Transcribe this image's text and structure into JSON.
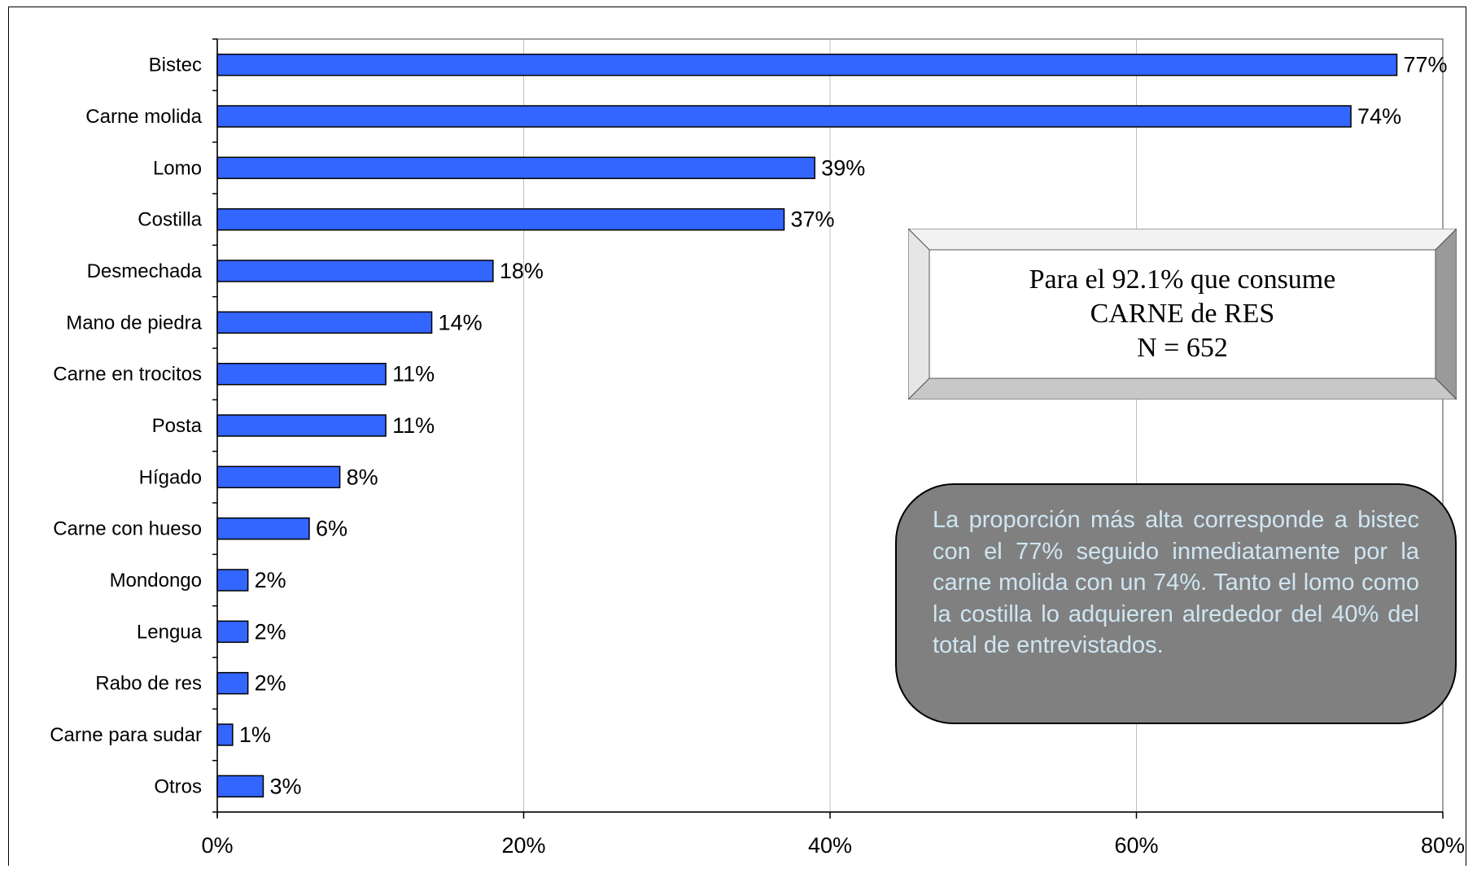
{
  "chart_data": {
    "type": "bar",
    "orientation": "horizontal",
    "categories": [
      "Bistec",
      "Carne molida",
      "Lomo",
      "Costilla",
      "Desmechada",
      "Mano de piedra",
      "Carne en trocitos",
      "Posta",
      "Hígado",
      "Carne con hueso",
      "Mondongo",
      "Lengua",
      "Rabo de res",
      "Carne para sudar",
      "Otros"
    ],
    "values": [
      77,
      74,
      39,
      37,
      18,
      14,
      11,
      11,
      8,
      6,
      2,
      2,
      2,
      1,
      3
    ],
    "value_labels": [
      "77%",
      "74%",
      "39%",
      "37%",
      "18%",
      "14%",
      "11%",
      "11%",
      "8%",
      "6%",
      "2%",
      "2%",
      "2%",
      "1%",
      "3%"
    ],
    "xlim": [
      0,
      80
    ],
    "xticks": [
      0,
      20,
      40,
      60,
      80
    ],
    "xtick_labels": [
      "0%",
      "20%",
      "40%",
      "60%",
      "80%"
    ],
    "grid": "vertical",
    "colors": {
      "bar": "#3366ff",
      "bar_outline": "#000000",
      "grid": "#c0c0c0"
    }
  },
  "info_box": {
    "line1": "Para el 92.1% que consume",
    "line2": "CARNE de RES",
    "line3": "N = 652"
  },
  "note": {
    "text": "La proporción más alta corresponde a bistec con el 77% seguido inmediatamente por la carne molida con un 74%.  Tanto el lomo como la costilla lo adquieren alrededor del 40% del total de entrevistados."
  }
}
